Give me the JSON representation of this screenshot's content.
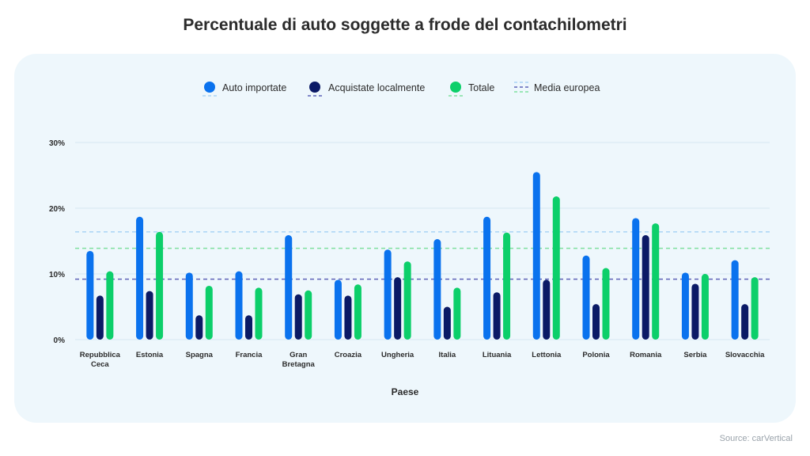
{
  "title": "Percentuale di auto soggette a frode del contachilometri",
  "source": "Source: carVertical",
  "colors": {
    "auto_importate": "#0a72ee",
    "acquistate_localmente": "#0b1a66",
    "totale": "#0ccf6a",
    "avg_importate": "#a9d4f5",
    "avg_locali": "#5d63b8",
    "avg_totale": "#7fe09f",
    "grid": "#d6e7f2"
  },
  "legend": {
    "auto_importate": "Auto importate",
    "acquistate_localmente": "Acquistate localmente",
    "totale": "Totale",
    "media_europea": "Media europea"
  },
  "chart_data": {
    "type": "bar",
    "title": "Percentuale di auto soggette a frode del contachilometri",
    "xlabel": "Paese",
    "ylabel": "",
    "ylim": [
      0,
      30
    ],
    "yticks": [
      "0%",
      "10%",
      "20%",
      "30%"
    ],
    "grid": true,
    "legend_position": "top-center",
    "categories": [
      [
        "Repubblica",
        "Ceca"
      ],
      [
        "Estonia"
      ],
      [
        "Spagna"
      ],
      [
        "Francia"
      ],
      [
        "Gran",
        "Bretagna"
      ],
      [
        "Croazia"
      ],
      [
        "Ungheria"
      ],
      [
        "Italia"
      ],
      [
        "Lituania"
      ],
      [
        "Lettonia"
      ],
      [
        "Polonia"
      ],
      [
        "Romania"
      ],
      [
        "Serbia"
      ],
      [
        "Slovacchia"
      ]
    ],
    "series": [
      {
        "name": "Auto importate",
        "values": [
          13.5,
          18.7,
          10.2,
          10.4,
          15.9,
          9.1,
          13.7,
          15.3,
          18.7,
          25.5,
          12.8,
          18.5,
          10.2,
          12.1
        ]
      },
      {
        "name": "Acquistate localmente",
        "values": [
          6.7,
          7.4,
          3.7,
          3.7,
          6.9,
          6.7,
          9.5,
          5.0,
          7.2,
          9.1,
          5.4,
          15.9,
          8.5,
          5.4
        ]
      },
      {
        "name": "Totale",
        "values": [
          10.4,
          16.4,
          8.2,
          7.9,
          7.5,
          8.4,
          11.9,
          7.9,
          16.3,
          21.8,
          10.9,
          17.7,
          10.0,
          9.5
        ]
      }
    ],
    "reference_lines": [
      {
        "name": "Media europea (Auto importate)",
        "value": 16.4
      },
      {
        "name": "Media europea (Totale)",
        "value": 13.9
      },
      {
        "name": "Media europea (Acquistate localmente)",
        "value": 9.2
      }
    ]
  }
}
